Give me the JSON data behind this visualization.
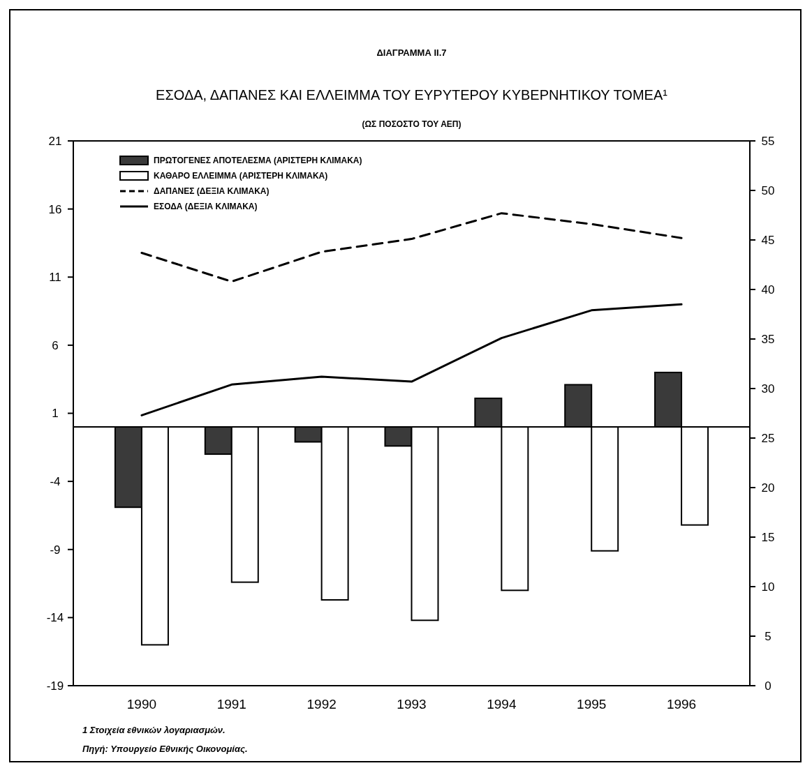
{
  "chart_data": {
    "type": "bar",
    "title": "ΕΣΟΔΑ, ΔΑΠΑΝΕΣ ΚΑΙ ΕΛΛΕΙΜΜΑ ΤΟΥ ΕΥΡΥΤΕΡΟΥ ΚΥΒΕΡΝΗΤΙΚΟΥ ΤΟΜΕΑ¹",
    "subtitle": "(ΩΣ ΠΟΣΟΣΤΟ ΤΟΥ ΑΕΠ)",
    "annotations": [
      "ΔΙΑΓΡΑΜΜΑ ΙΙ.7",
      "1 Στοιχεία εθνικών λογαριασμών.",
      "Πηγή: Υπουργείο Εθνικής Οικονομίας."
    ],
    "categories": [
      "1990",
      "1991",
      "1992",
      "1993",
      "1994",
      "1995",
      "1996"
    ],
    "series": [
      {
        "name": "ΠΡΩΤΟΓΕΝΕΣ ΑΠΟΤΕΛΕΣΜΑ (ΑΡΙΣΤΕΡΗ ΚΛΙΜΑΚΑ)",
        "color": "#3a3a3a",
        "values": [
          -5.9,
          -2.0,
          -1.1,
          -1.4,
          2.1,
          3.1,
          4.0
        ]
      },
      {
        "name": "ΚΑΘΑΡΟ ΕΛΛΕΙΜΜΑ (ΑΡΙΣΤΕΡΗ ΚΛΙΜΑΚΑ)",
        "color": "#ffffff",
        "values": [
          -16.0,
          -11.4,
          -12.7,
          -14.2,
          -12.0,
          -9.1,
          -7.2
        ]
      },
      {
        "name": "ΔΑΠΑΝΕΣ (ΔΕΞΙΑ ΚΛΙΜΑΚΑ)",
        "type": "line",
        "axis": "y2",
        "line_style": "dashed",
        "color": "#000000",
        "values": [
          43.7,
          40.8,
          43.8,
          45.1,
          47.7,
          46.6,
          45.2
        ]
      },
      {
        "name": "ΕΣΟΔΑ (ΔΕΞΙΑ ΚΛΙΜΑΚΑ)",
        "type": "line",
        "axis": "y2",
        "line_style": "solid",
        "color": "#000000",
        "values": [
          27.3,
          30.4,
          31.2,
          30.7,
          35.1,
          37.9,
          38.5
        ]
      }
    ],
    "ylim": [
      -19,
      21
    ],
    "yticks": [
      -19,
      -14,
      -9,
      -4,
      1,
      6,
      11,
      16,
      21
    ],
    "y2lim": [
      0,
      55
    ],
    "y2ticks": [
      0,
      5,
      10,
      15,
      20,
      25,
      30,
      35,
      40,
      45,
      50,
      55
    ],
    "legend": "top left",
    "grid": false
  }
}
